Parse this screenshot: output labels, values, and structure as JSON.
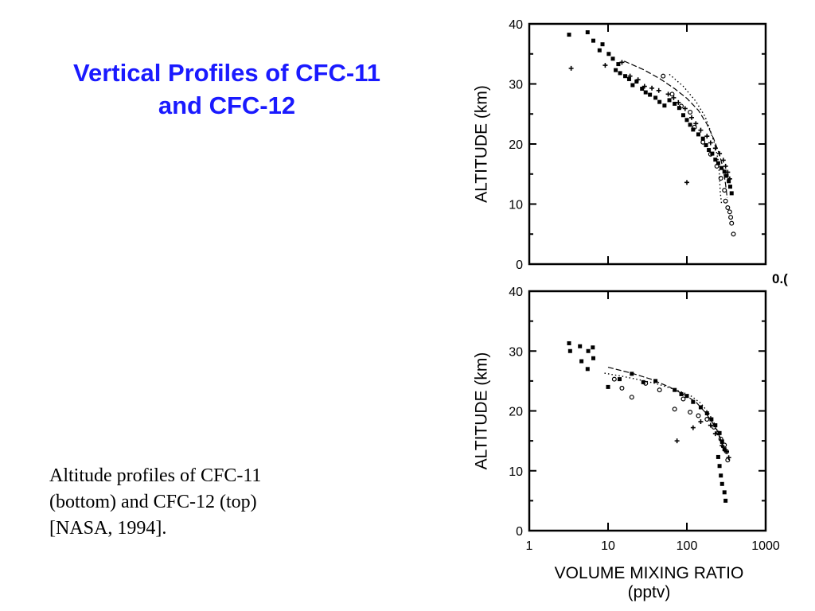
{
  "slide": {
    "title_lines": [
      "Vertical Profiles of CFC-11",
      "and CFC-12"
    ],
    "caption_lines": [
      "Altitude profiles of CFC-11",
      "(bottom) and CFC-12 (top)",
      "[NASA, 1994]."
    ],
    "title_color": "#1a1aff",
    "cropped_label": "0.("
  },
  "chart_data": [
    {
      "type": "scatter",
      "panel": "top",
      "ylabel": "ALTITUDE (km)",
      "xlabel": "",
      "xscale": "log",
      "xlim": [
        1,
        1000
      ],
      "ylim": [
        0,
        40
      ],
      "yticks": [
        "0",
        "10",
        "20",
        "30",
        "40"
      ],
      "xticks": [],
      "series": [
        {
          "marker": "square",
          "points": [
            [
              3.2,
              38.2
            ],
            [
              5.5,
              38.6
            ],
            [
              6.5,
              37.2
            ],
            [
              8.5,
              36.6
            ],
            [
              7.8,
              35.6
            ],
            [
              10.2,
              35.0
            ],
            [
              11.5,
              34.2
            ],
            [
              13.5,
              33.3
            ],
            [
              12.5,
              32.3
            ],
            [
              14.2,
              31.8
            ],
            [
              16.5,
              31.3
            ],
            [
              18.5,
              30.8
            ],
            [
              20.5,
              29.8
            ],
            [
              23,
              30.4
            ],
            [
              27,
              29.2
            ],
            [
              30,
              28.6
            ],
            [
              34,
              28.2
            ],
            [
              40,
              27.7
            ],
            [
              45,
              27.0
            ],
            [
              52,
              26.4
            ],
            [
              60,
              27.3
            ],
            [
              70,
              26.7
            ],
            [
              80,
              26.0
            ],
            [
              90,
              24.8
            ],
            [
              100,
              24.0
            ],
            [
              110,
              23.2
            ],
            [
              120,
              22.4
            ],
            [
              140,
              21.6
            ],
            [
              160,
              20.9
            ],
            [
              175,
              19.8
            ],
            [
              190,
              19.0
            ],
            [
              210,
              18.4
            ],
            [
              230,
              17.4
            ],
            [
              250,
              16.8
            ],
            [
              275,
              16.0
            ],
            [
              300,
              15.4
            ],
            [
              320,
              14.7
            ],
            [
              340,
              13.8
            ],
            [
              355,
              12.9
            ],
            [
              370,
              11.8
            ]
          ]
        },
        {
          "marker": "cross",
          "points": [
            [
              3.4,
              32.6
            ],
            [
              9.2,
              33.1
            ],
            [
              15,
              33.6
            ],
            [
              19,
              31.3
            ],
            [
              24,
              30.7
            ],
            [
              29,
              29.6
            ],
            [
              36,
              29.3
            ],
            [
              44,
              28.9
            ],
            [
              58,
              28.3
            ],
            [
              68,
              27.7
            ],
            [
              78,
              26.9
            ],
            [
              95,
              25.9
            ],
            [
              115,
              24.4
            ],
            [
              130,
              23.4
            ],
            [
              150,
              22.3
            ],
            [
              180,
              21.3
            ],
            [
              200,
              20.2
            ],
            [
              230,
              19.3
            ],
            [
              260,
              18.4
            ],
            [
              290,
              17.3
            ],
            [
              310,
              16.3
            ],
            [
              330,
              15.3
            ],
            [
              350,
              14.2
            ],
            [
              100,
              13.6
            ]
          ]
        },
        {
          "marker": "circle",
          "points": [
            [
              50,
              31.3
            ],
            [
              65,
              28.3
            ],
            [
              85,
              26.3
            ],
            [
              110,
              25.3
            ],
            [
              125,
              22.8
            ],
            [
              160,
              20.3
            ],
            [
              200,
              18.3
            ],
            [
              240,
              16.3
            ],
            [
              270,
              14.3
            ],
            [
              300,
              12.3
            ],
            [
              310,
              10.5
            ],
            [
              330,
              9.4
            ],
            [
              350,
              8.7
            ],
            [
              360,
              7.8
            ],
            [
              370,
              6.8
            ],
            [
              390,
              5.0
            ]
          ]
        },
        {
          "marker": "line",
          "points": [
            [
              16,
              33.8
            ],
            [
              28,
              32.4
            ],
            [
              45,
              30.9
            ],
            [
              70,
              29.2
            ],
            [
              100,
              27.6
            ],
            [
              140,
              25.6
            ],
            [
              180,
              23.3
            ],
            [
              220,
              20.8
            ],
            [
              260,
              18.2
            ],
            [
              290,
              15.8
            ],
            [
              310,
              13.3
            ],
            [
              325,
              11.0
            ]
          ]
        },
        {
          "marker": "dotted-line",
          "points": [
            [
              60,
              31.6
            ],
            [
              90,
              29.6
            ],
            [
              130,
              27.1
            ],
            [
              170,
              24.6
            ],
            [
              200,
              22.1
            ],
            [
              230,
              19.6
            ],
            [
              250,
              17.2
            ],
            [
              260,
              14.6
            ],
            [
              265,
              12.1
            ],
            [
              275,
              10.1
            ]
          ]
        }
      ]
    },
    {
      "type": "scatter",
      "panel": "bottom",
      "ylabel": "ALTITUDE (km)",
      "xlabel": "VOLUME MIXING RATIO",
      "xunit": "(pptv)",
      "xscale": "log",
      "xlim": [
        1,
        1000
      ],
      "ylim": [
        0,
        40
      ],
      "yticks": [
        "0",
        "10",
        "20",
        "30",
        "40"
      ],
      "xticks": [
        "1",
        "10",
        "100",
        "1000"
      ],
      "series": [
        {
          "marker": "square",
          "points": [
            [
              3.2,
              31.3
            ],
            [
              3.3,
              30.0
            ],
            [
              4.4,
              30.8
            ],
            [
              4.6,
              28.3
            ],
            [
              5.6,
              30.0
            ],
            [
              5.5,
              27.0
            ],
            [
              6.4,
              30.6
            ],
            [
              6.5,
              28.8
            ],
            [
              10,
              24.0
            ],
            [
              14,
              25.3
            ],
            [
              20,
              26.2
            ],
            [
              28,
              24.8
            ],
            [
              40,
              25.0
            ],
            [
              70,
              23.5
            ],
            [
              85,
              22.8
            ],
            [
              100,
              22.5
            ],
            [
              120,
              21.5
            ],
            [
              150,
              20.6
            ],
            [
              180,
              19.6
            ],
            [
              205,
              18.6
            ],
            [
              230,
              17.6
            ],
            [
              260,
              16.3
            ],
            [
              280,
              14.9
            ],
            [
              300,
              13.6
            ],
            [
              250,
              12.3
            ],
            [
              260,
              10.8
            ],
            [
              270,
              9.2
            ],
            [
              280,
              7.8
            ],
            [
              300,
              6.4
            ],
            [
              310,
              5.0
            ]
          ]
        },
        {
          "marker": "cross",
          "points": [
            [
              75,
              15.0
            ],
            [
              120,
              17.2
            ],
            [
              150,
              18.2
            ],
            [
              200,
              17.6
            ],
            [
              230,
              16.2
            ],
            [
              280,
              14.2
            ],
            [
              320,
              13.2
            ],
            [
              340,
              12.2
            ]
          ]
        },
        {
          "marker": "circle",
          "points": [
            [
              12,
              25.3
            ],
            [
              15,
              23.8
            ],
            [
              20,
              22.3
            ],
            [
              30,
              24.6
            ],
            [
              45,
              23.5
            ],
            [
              70,
              20.3
            ],
            [
              90,
              22.0
            ],
            [
              110,
              19.8
            ],
            [
              140,
              19.2
            ],
            [
              180,
              18.6
            ],
            [
              220,
              17.3
            ],
            [
              250,
              16.3
            ],
            [
              270,
              15.3
            ],
            [
              300,
              14.3
            ],
            [
              320,
              13.2
            ],
            [
              330,
              11.8
            ]
          ]
        },
        {
          "marker": "line",
          "points": [
            [
              10,
              27.3
            ],
            [
              20,
              26.3
            ],
            [
              35,
              25.3
            ],
            [
              60,
              24.0
            ],
            [
              90,
              22.8
            ],
            [
              130,
              21.5
            ],
            [
              170,
              19.8
            ],
            [
              210,
              18.1
            ],
            [
              250,
              16.4
            ],
            [
              280,
              14.6
            ],
            [
              300,
              13.1
            ]
          ]
        },
        {
          "marker": "dotted-line",
          "points": [
            [
              9,
              26.3
            ],
            [
              15,
              25.8
            ],
            [
              25,
              25.2
            ],
            [
              40,
              24.6
            ],
            [
              70,
              23.6
            ],
            [
              110,
              22.6
            ],
            [
              150,
              21.3
            ],
            [
              190,
              19.6
            ],
            [
              230,
              17.6
            ],
            [
              260,
              15.6
            ],
            [
              280,
              13.6
            ]
          ]
        }
      ]
    }
  ]
}
